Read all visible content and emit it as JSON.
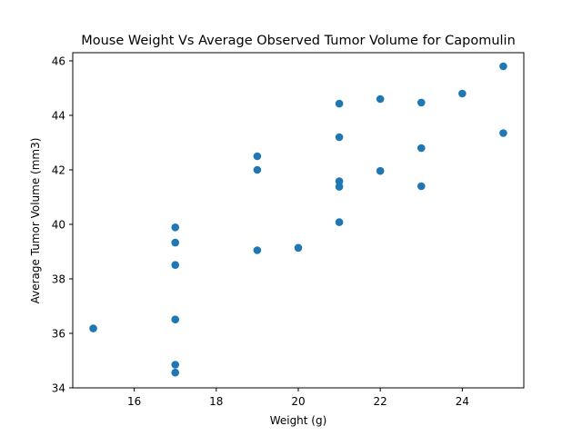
{
  "chart_data": {
    "type": "scatter",
    "title": "Mouse Weight Vs Average Observed Tumor Volume for Capomulin",
    "xlabel": "Weight (g)",
    "ylabel": "Average Tumor Volume (mm3)",
    "xlim": [
      14.5,
      25.5
    ],
    "ylim": [
      34,
      46.3
    ],
    "xticks": [
      16,
      18,
      20,
      22,
      24
    ],
    "yticks": [
      34,
      36,
      38,
      40,
      42,
      44,
      46
    ],
    "grid": false,
    "marker_color": "#1f77b4",
    "series": [
      {
        "points": [
          {
            "x": 15,
            "y": 36.18
          },
          {
            "x": 17,
            "y": 34.56
          },
          {
            "x": 17,
            "y": 34.85
          },
          {
            "x": 17,
            "y": 36.51
          },
          {
            "x": 17,
            "y": 38.51
          },
          {
            "x": 17,
            "y": 39.33
          },
          {
            "x": 17,
            "y": 39.89
          },
          {
            "x": 19,
            "y": 39.05
          },
          {
            "x": 19,
            "y": 42.0
          },
          {
            "x": 19,
            "y": 42.5
          },
          {
            "x": 20,
            "y": 39.14
          },
          {
            "x": 21,
            "y": 40.08
          },
          {
            "x": 21,
            "y": 41.38
          },
          {
            "x": 21,
            "y": 41.58
          },
          {
            "x": 21,
            "y": 43.2
          },
          {
            "x": 21,
            "y": 44.43
          },
          {
            "x": 22,
            "y": 41.96
          },
          {
            "x": 22,
            "y": 44.6
          },
          {
            "x": 23,
            "y": 41.4
          },
          {
            "x": 23,
            "y": 42.8
          },
          {
            "x": 23,
            "y": 44.47
          },
          {
            "x": 24,
            "y": 44.8
          },
          {
            "x": 25,
            "y": 43.35
          },
          {
            "x": 25,
            "y": 45.8
          }
        ]
      }
    ]
  }
}
